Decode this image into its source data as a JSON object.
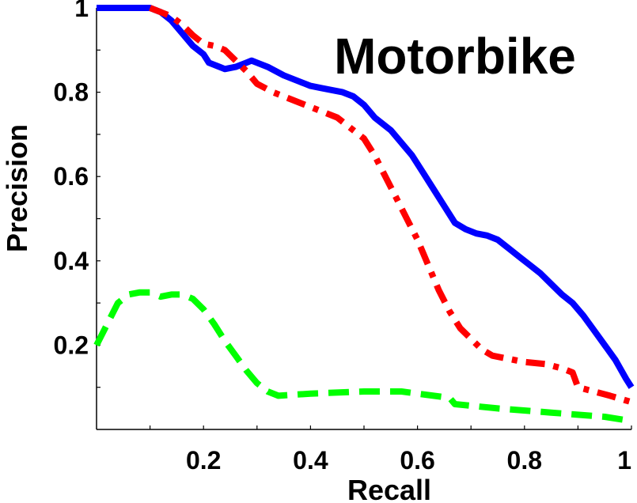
{
  "chart_data": {
    "type": "line",
    "title": "Motorbike",
    "xlabel": "Recall",
    "ylabel": "Precision",
    "xlim": [
      0,
      1
    ],
    "ylim": [
      0,
      1
    ],
    "grid": false,
    "legend": "none",
    "x_ticks": [
      {
        "value": 0.2,
        "label": "0.2"
      },
      {
        "value": 0.4,
        "label": "0.4"
      },
      {
        "value": 0.6,
        "label": "0.6"
      },
      {
        "value": 0.8,
        "label": "0.8"
      },
      {
        "value": 1,
        "label": "1"
      }
    ],
    "y_ticks": [
      {
        "value": 0.2,
        "label": "0.2"
      },
      {
        "value": 0.4,
        "label": "0.4"
      },
      {
        "value": 0.6,
        "label": "0.6"
      },
      {
        "value": 0.8,
        "label": "0.8"
      },
      {
        "value": 1,
        "label": "1"
      }
    ],
    "series": [
      {
        "color": "#0000ff",
        "style": "solid",
        "points": [
          [
            0,
            1
          ],
          [
            0.05,
            1
          ],
          [
            0.1,
            1
          ],
          [
            0.12,
            0.99
          ],
          [
            0.14,
            0.97
          ],
          [
            0.16,
            0.94
          ],
          [
            0.18,
            0.91
          ],
          [
            0.2,
            0.89
          ],
          [
            0.21,
            0.87
          ],
          [
            0.23,
            0.86
          ],
          [
            0.24,
            0.855
          ],
          [
            0.26,
            0.86
          ],
          [
            0.28,
            0.87
          ],
          [
            0.29,
            0.875
          ],
          [
            0.3,
            0.87
          ],
          [
            0.32,
            0.86
          ],
          [
            0.35,
            0.84
          ],
          [
            0.38,
            0.825
          ],
          [
            0.4,
            0.815
          ],
          [
            0.42,
            0.81
          ],
          [
            0.44,
            0.805
          ],
          [
            0.46,
            0.8
          ],
          [
            0.48,
            0.79
          ],
          [
            0.5,
            0.77
          ],
          [
            0.52,
            0.74
          ],
          [
            0.55,
            0.71
          ],
          [
            0.57,
            0.68
          ],
          [
            0.59,
            0.65
          ],
          [
            0.61,
            0.61
          ],
          [
            0.63,
            0.57
          ],
          [
            0.65,
            0.53
          ],
          [
            0.67,
            0.49
          ],
          [
            0.69,
            0.475
          ],
          [
            0.71,
            0.465
          ],
          [
            0.73,
            0.46
          ],
          [
            0.75,
            0.45
          ],
          [
            0.77,
            0.43
          ],
          [
            0.79,
            0.41
          ],
          [
            0.81,
            0.39
          ],
          [
            0.83,
            0.37
          ],
          [
            0.85,
            0.345
          ],
          [
            0.87,
            0.32
          ],
          [
            0.89,
            0.3
          ],
          [
            0.91,
            0.27
          ],
          [
            0.93,
            0.235
          ],
          [
            0.95,
            0.2
          ],
          [
            0.97,
            0.165
          ],
          [
            0.99,
            0.12
          ],
          [
            1,
            0.1
          ]
        ]
      },
      {
        "color": "#ff0000",
        "style": "dashdot",
        "points": [
          [
            0.1,
            1
          ],
          [
            0.12,
            0.99
          ],
          [
            0.14,
            0.98
          ],
          [
            0.16,
            0.96
          ],
          [
            0.18,
            0.935
          ],
          [
            0.2,
            0.915
          ],
          [
            0.22,
            0.91
          ],
          [
            0.24,
            0.9
          ],
          [
            0.26,
            0.875
          ],
          [
            0.28,
            0.85
          ],
          [
            0.3,
            0.82
          ],
          [
            0.33,
            0.8
          ],
          [
            0.36,
            0.785
          ],
          [
            0.39,
            0.77
          ],
          [
            0.42,
            0.755
          ],
          [
            0.45,
            0.74
          ],
          [
            0.48,
            0.71
          ],
          [
            0.5,
            0.69
          ],
          [
            0.52,
            0.65
          ],
          [
            0.54,
            0.6
          ],
          [
            0.56,
            0.55
          ],
          [
            0.58,
            0.5
          ],
          [
            0.6,
            0.45
          ],
          [
            0.62,
            0.39
          ],
          [
            0.64,
            0.33
          ],
          [
            0.66,
            0.28
          ],
          [
            0.68,
            0.24
          ],
          [
            0.7,
            0.215
          ],
          [
            0.72,
            0.19
          ],
          [
            0.74,
            0.175
          ],
          [
            0.76,
            0.17
          ],
          [
            0.8,
            0.16
          ],
          [
            0.84,
            0.155
          ],
          [
            0.87,
            0.145
          ],
          [
            0.89,
            0.135
          ],
          [
            0.9,
            0.1
          ],
          [
            0.93,
            0.09
          ],
          [
            0.96,
            0.08
          ],
          [
            1,
            0.065
          ]
        ]
      },
      {
        "color": "#00ff00",
        "style": "dashed",
        "points": [
          [
            0,
            0.2
          ],
          [
            0.02,
            0.25
          ],
          [
            0.04,
            0.3
          ],
          [
            0.06,
            0.32
          ],
          [
            0.08,
            0.325
          ],
          [
            0.1,
            0.325
          ],
          [
            0.12,
            0.315
          ],
          [
            0.14,
            0.32
          ],
          [
            0.16,
            0.32
          ],
          [
            0.18,
            0.31
          ],
          [
            0.2,
            0.285
          ],
          [
            0.22,
            0.25
          ],
          [
            0.24,
            0.21
          ],
          [
            0.26,
            0.175
          ],
          [
            0.28,
            0.14
          ],
          [
            0.3,
            0.11
          ],
          [
            0.32,
            0.09
          ],
          [
            0.34,
            0.08
          ],
          [
            0.4,
            0.085
          ],
          [
            0.5,
            0.09
          ],
          [
            0.57,
            0.09
          ],
          [
            0.6,
            0.085
          ],
          [
            0.66,
            0.075
          ],
          [
            0.67,
            0.06
          ],
          [
            0.75,
            0.05
          ],
          [
            0.85,
            0.04
          ],
          [
            0.95,
            0.03
          ],
          [
            1,
            0.02
          ]
        ]
      }
    ]
  }
}
